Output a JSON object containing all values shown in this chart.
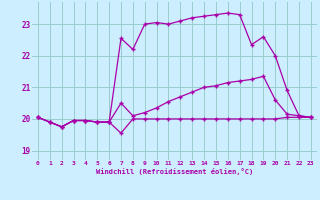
{
  "xlabel": "Windchill (Refroidissement éolien,°C)",
  "bg_color": "#cceeff",
  "grid_color": "#99cccc",
  "line_color": "#aa00aa",
  "xlim": [
    -0.5,
    23.5
  ],
  "ylim": [
    18.7,
    23.7
  ],
  "yticks": [
    19,
    20,
    21,
    22,
    23
  ],
  "xticks": [
    0,
    1,
    2,
    3,
    4,
    5,
    6,
    7,
    8,
    9,
    10,
    11,
    12,
    13,
    14,
    15,
    16,
    17,
    18,
    19,
    20,
    21,
    22,
    23
  ],
  "line1_x": [
    0,
    1,
    2,
    3,
    4,
    5,
    6,
    7,
    8,
    9,
    10,
    11,
    12,
    13,
    14,
    15,
    16,
    17,
    18,
    19,
    20,
    21,
    22,
    23
  ],
  "line1_y": [
    20.05,
    19.9,
    19.75,
    19.95,
    19.95,
    19.9,
    19.9,
    19.55,
    20.0,
    20.0,
    20.0,
    20.0,
    20.0,
    20.0,
    20.0,
    20.0,
    20.0,
    20.0,
    20.0,
    20.0,
    20.0,
    20.05,
    20.05,
    20.05
  ],
  "line2_x": [
    0,
    1,
    2,
    3,
    4,
    5,
    6,
    7,
    8,
    9,
    10,
    11,
    12,
    13,
    14,
    15,
    16,
    17,
    18,
    19,
    20,
    21,
    22,
    23
  ],
  "line2_y": [
    20.05,
    19.9,
    19.75,
    19.95,
    19.95,
    19.9,
    19.9,
    20.5,
    20.1,
    20.2,
    20.35,
    20.55,
    20.7,
    20.85,
    21.0,
    21.05,
    21.15,
    21.2,
    21.25,
    21.35,
    20.6,
    20.15,
    20.1,
    20.05
  ],
  "line3_x": [
    0,
    1,
    2,
    3,
    4,
    5,
    6,
    7,
    8,
    9,
    10,
    11,
    12,
    13,
    14,
    15,
    16,
    17,
    18,
    19,
    20,
    21,
    22,
    23
  ],
  "line3_y": [
    20.05,
    19.9,
    19.75,
    19.95,
    19.95,
    19.9,
    19.9,
    22.55,
    22.2,
    23.0,
    23.05,
    23.0,
    23.1,
    23.2,
    23.25,
    23.3,
    23.35,
    23.3,
    22.35,
    22.6,
    22.0,
    20.9,
    20.1,
    20.05
  ]
}
